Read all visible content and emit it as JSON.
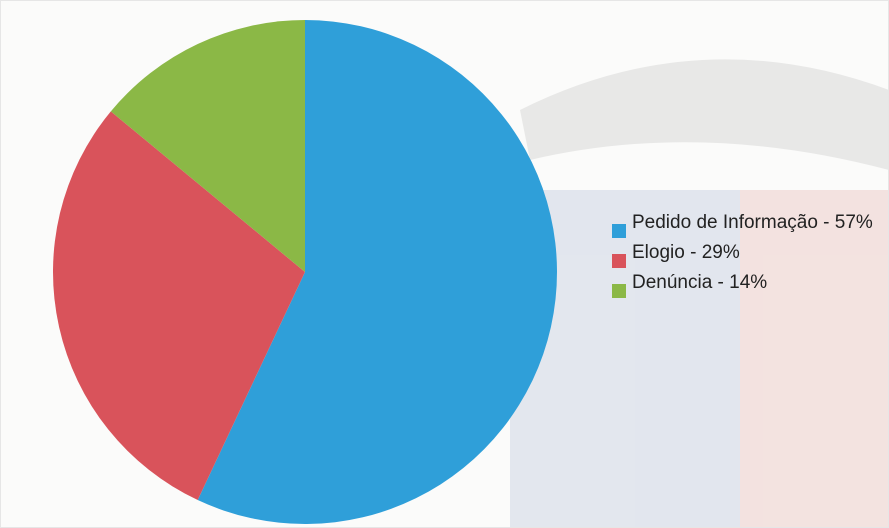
{
  "chart_data": {
    "type": "pie",
    "categories": [
      "Pedido de Informação - 57%",
      "Elogio - 29%",
      "Denúncia - 14%"
    ],
    "values": [
      57,
      29,
      14
    ],
    "colors": [
      "#2f9fd9",
      "#d9535b",
      "#8bb846"
    ]
  }
}
